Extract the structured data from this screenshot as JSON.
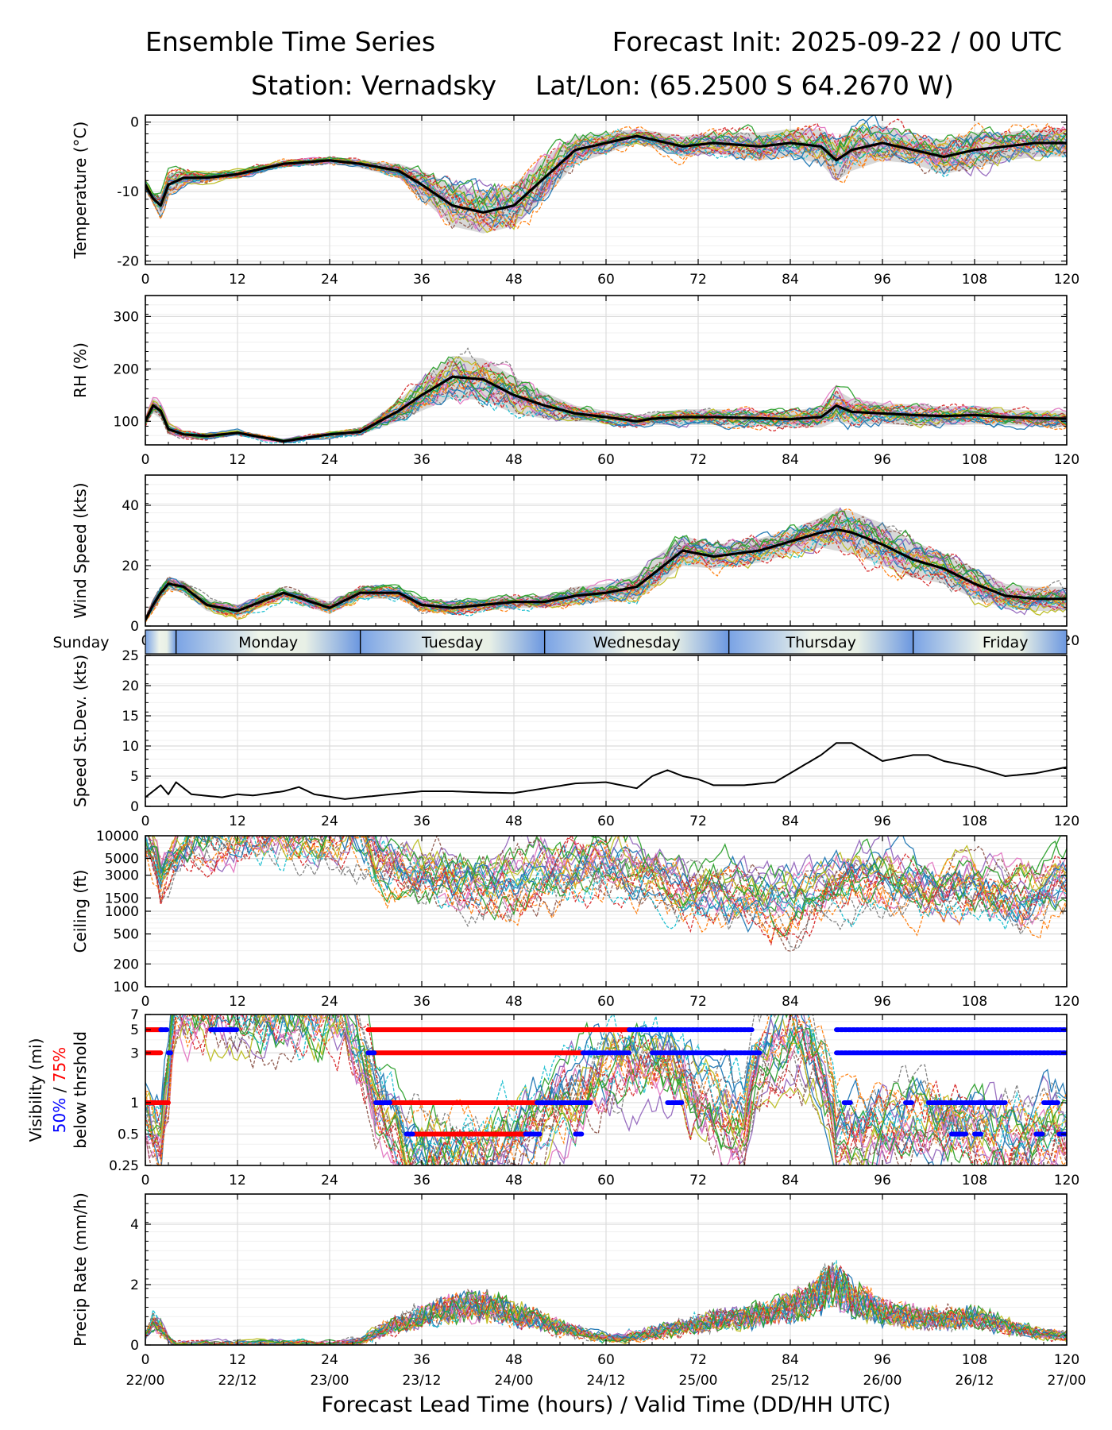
{
  "title": {
    "left": "Ensemble Time Series",
    "right": "Forecast Init: 2025-09-22 / 00 UTC",
    "station": "Station: Vernadsky",
    "latlon": "Lat/Lon: (65.2500 S 64.2670 W)"
  },
  "xlabel": "Forecast Lead Time (hours) / Valid Time (DD/HH UTC)",
  "x_ticks": [
    0,
    12,
    24,
    36,
    48,
    60,
    72,
    84,
    96,
    108,
    120
  ],
  "valid_time_ticks": [
    "22/00",
    "22/12",
    "23/00",
    "23/12",
    "24/00",
    "24/12",
    "25/00",
    "25/12",
    "26/00",
    "26/12",
    "27/00"
  ],
  "day_bar": {
    "days": [
      {
        "label": "Sunday",
        "start": -4,
        "end": 4
      },
      {
        "label": "Monday",
        "start": 4,
        "end": 28
      },
      {
        "label": "Tuesday",
        "start": 28,
        "end": 52
      },
      {
        "label": "Wednesday",
        "start": 52,
        "end": 76
      },
      {
        "label": "Thursday",
        "start": 76,
        "end": 100
      },
      {
        "label": "Friday",
        "start": 100,
        "end": 124
      }
    ]
  },
  "ensemble_colors": [
    "#1f77b4",
    "#ff7f0e",
    "#2ca02c",
    "#d62728",
    "#9467bd",
    "#8c564b",
    "#e377c2",
    "#7f7f7f",
    "#bcbd22",
    "#17becf"
  ],
  "chart_data": [
    {
      "id": "temperature",
      "type": "line",
      "ylabel": "Temperature (°C)",
      "ylim": [
        -20.5,
        1
      ],
      "yticks": [
        0,
        -10,
        -20
      ],
      "xlim": [
        0,
        120
      ],
      "series": [
        {
          "name": "ensemble mean",
          "x": [
            0,
            1,
            2,
            3,
            5,
            8,
            12,
            18,
            24,
            28,
            33,
            36,
            40,
            44,
            48,
            52,
            56,
            60,
            64,
            66,
            70,
            74,
            80,
            84,
            88,
            90,
            92,
            96,
            100,
            104,
            108,
            112,
            116,
            120
          ],
          "values": [
            -9,
            -11,
            -12,
            -9,
            -8,
            -8,
            -7.5,
            -6,
            -5.5,
            -6,
            -7,
            -9,
            -12,
            -13,
            -12,
            -8,
            -4,
            -3,
            -2,
            -2.5,
            -3.5,
            -3,
            -3.5,
            -3,
            -3.5,
            -5.5,
            -4,
            -3,
            -4,
            -5,
            -4,
            -3.5,
            -3,
            -3
          ]
        }
      ],
      "spread": [
        0.8,
        0.8,
        1.5,
        1.5,
        1,
        0.6,
        0.5,
        0.5,
        0.5,
        0.6,
        1,
        2,
        3,
        3,
        3,
        3,
        2,
        1.5,
        1,
        1.2,
        1.5,
        1.5,
        2,
        2,
        2.5,
        3,
        3,
        2.5,
        2,
        2.5,
        2.5,
        2,
        2,
        2
      ]
    },
    {
      "id": "rh",
      "type": "line",
      "ylabel": "RH (%)",
      "ylim": [
        55,
        340
      ],
      "yticks": [
        100,
        200,
        300
      ],
      "xlim": [
        0,
        120
      ],
      "series": [
        {
          "name": "ensemble mean",
          "x": [
            0,
            1,
            2,
            3,
            5,
            8,
            12,
            18,
            24,
            28,
            33,
            36,
            40,
            44,
            48,
            52,
            56,
            60,
            64,
            66,
            70,
            74,
            80,
            84,
            88,
            90,
            92,
            96,
            100,
            104,
            108,
            112,
            116,
            120
          ],
          "values": [
            100,
            130,
            120,
            85,
            75,
            72,
            78,
            62,
            75,
            80,
            120,
            150,
            185,
            180,
            150,
            130,
            115,
            108,
            100,
            105,
            108,
            108,
            106,
            104,
            108,
            130,
            118,
            115,
            112,
            110,
            112,
            108,
            106,
            105
          ]
        }
      ],
      "spread": [
        10,
        15,
        15,
        10,
        6,
        5,
        5,
        4,
        5,
        6,
        20,
        30,
        40,
        40,
        35,
        25,
        15,
        12,
        10,
        12,
        15,
        15,
        15,
        15,
        20,
        30,
        25,
        20,
        20,
        18,
        18,
        15,
        15,
        15
      ]
    },
    {
      "id": "wind",
      "type": "line",
      "ylabel": "Wind Speed (kts)",
      "ylim": [
        0,
        50
      ],
      "yticks": [
        0,
        20,
        40
      ],
      "xlim": [
        0,
        120
      ],
      "series": [
        {
          "name": "ensemble mean",
          "x": [
            0,
            1,
            2,
            3,
            5,
            8,
            12,
            18,
            24,
            28,
            33,
            36,
            40,
            44,
            48,
            52,
            56,
            60,
            64,
            66,
            70,
            74,
            80,
            84,
            88,
            90,
            92,
            96,
            100,
            104,
            108,
            112,
            116,
            120
          ],
          "values": [
            2,
            7,
            11,
            14,
            13,
            7,
            5,
            11,
            6,
            11,
            11,
            7,
            6,
            7,
            8,
            8,
            10,
            11,
            13,
            17,
            25,
            23,
            25,
            28,
            31,
            32,
            31,
            27,
            22,
            19,
            14,
            10,
            9,
            9
          ]
        }
      ],
      "spread": [
        1,
        2,
        2,
        2,
        2,
        2,
        2,
        2,
        2,
        2,
        2,
        2,
        2,
        2,
        2,
        2,
        3,
        3,
        4,
        5,
        5,
        4,
        4,
        4,
        5,
        7,
        7,
        7,
        6,
        5,
        5,
        4,
        4,
        4
      ]
    },
    {
      "id": "wind_sd",
      "type": "line",
      "ylabel": "Speed St.Dev. (kts)",
      "ylim": [
        0,
        25
      ],
      "yticks": [
        0,
        5,
        10,
        15,
        20,
        25
      ],
      "xlim": [
        0,
        120
      ],
      "series": [
        {
          "name": "speed standard deviation",
          "x": [
            0,
            1,
            2,
            3,
            4,
            6,
            10,
            12,
            14,
            18,
            20,
            22,
            26,
            28,
            32,
            36,
            40,
            44,
            48,
            52,
            56,
            60,
            64,
            66,
            68,
            70,
            72,
            74,
            78,
            82,
            84,
            88,
            90,
            92,
            96,
            100,
            102,
            104,
            108,
            112,
            116,
            120
          ],
          "values": [
            1.5,
            2.5,
            3.5,
            2,
            4,
            2,
            1.5,
            2,
            1.8,
            2.5,
            3.2,
            2,
            1.2,
            1.5,
            2,
            2.5,
            2.5,
            2.3,
            2.2,
            3,
            3.8,
            4,
            3,
            5,
            6,
            5,
            4.5,
            3.5,
            3.5,
            4,
            5.5,
            8.5,
            10.5,
            10.5,
            7.5,
            8.5,
            8.5,
            7.5,
            6.5,
            5,
            5.5,
            6.5
          ]
        }
      ]
    },
    {
      "id": "ceiling",
      "type": "line",
      "ylabel": "Ceiling (ft)",
      "yscale": "log",
      "ylim": [
        100,
        10000
      ],
      "yticks": [
        10000,
        5000,
        3000,
        1500,
        1000,
        500,
        200,
        100
      ],
      "xlim": [
        0,
        120
      ],
      "series": [
        {
          "name": "ensemble members",
          "x": [
            0,
            2,
            4,
            6,
            24,
            28,
            30,
            36,
            42,
            48,
            54,
            60,
            66,
            72,
            78,
            84,
            90,
            96,
            102,
            108,
            114,
            120
          ],
          "values": [
            10000,
            3000,
            6000,
            10000,
            10000,
            10000,
            5000,
            3000,
            2500,
            2500,
            3000,
            4000,
            3000,
            2000,
            1500,
            1200,
            2500,
            2500,
            2000,
            2000,
            1500,
            2500
          ]
        }
      ]
    },
    {
      "id": "visibility",
      "type": "line",
      "ylabel": "Visibility (mi)",
      "yscale": "log",
      "ylabel2": "50%",
      "ylabel_sep": " / ",
      "ylabel3": "75%",
      "ylabel4": "below thrshold",
      "ylim": [
        0.25,
        7
      ],
      "yticks": [
        7,
        5,
        3,
        1,
        0.5,
        0.25
      ],
      "xlim": [
        0,
        120
      ],
      "series": [
        {
          "name": "ensemble members",
          "x": [
            0,
            1,
            2,
            3,
            4,
            8,
            12,
            26,
            28,
            30,
            32,
            34,
            36,
            40,
            44,
            48,
            52,
            56,
            60,
            66,
            72,
            78,
            84,
            90,
            96,
            102,
            108,
            114,
            120
          ],
          "values": [
            0.8,
            0.5,
            0.4,
            1.5,
            7,
            7,
            7,
            7,
            3,
            1,
            0.6,
            0.3,
            0.3,
            0.3,
            0.3,
            0.4,
            0.6,
            1,
            2,
            3,
            1,
            0.6,
            5,
            0.5,
            0.6,
            0.8,
            0.6,
            0.5,
            0.5
          ]
        }
      ],
      "threshold_segments": {
        "p75": [
          [
            0,
            2,
            5
          ],
          [
            29,
            63,
            5
          ],
          [
            0,
            2,
            3
          ],
          [
            29,
            57,
            3
          ],
          [
            0,
            3,
            1
          ],
          [
            30,
            51,
            1
          ],
          [
            35,
            50,
            0.5
          ]
        ],
        "p50": [
          [
            2,
            3,
            5
          ],
          [
            8.5,
            12,
            5
          ],
          [
            63,
            66,
            5
          ],
          [
            66,
            79,
            5
          ],
          [
            90,
            120,
            5
          ],
          [
            3,
            3.4,
            3
          ],
          [
            29,
            30,
            3
          ],
          [
            57,
            63,
            3
          ],
          [
            66,
            80,
            3
          ],
          [
            90,
            120,
            3
          ],
          [
            30,
            32,
            1
          ],
          [
            51,
            58,
            1
          ],
          [
            68,
            70,
            1
          ],
          [
            91,
            92,
            1
          ],
          [
            99,
            100,
            1
          ],
          [
            102,
            112,
            1
          ],
          [
            117,
            119,
            1
          ],
          [
            34,
            35,
            0.5
          ],
          [
            49.5,
            51.5,
            0.5
          ],
          [
            56,
            57,
            0.5
          ],
          [
            105,
            107,
            0.5
          ],
          [
            108,
            109,
            0.5
          ],
          [
            116,
            117,
            0.5
          ],
          [
            119,
            120,
            0.5
          ]
        ]
      }
    },
    {
      "id": "precip",
      "type": "line",
      "ylabel": "Precip Rate (mm/h)",
      "ylim": [
        0,
        5
      ],
      "yticks": [
        0,
        2,
        4
      ],
      "xlim": [
        0,
        120
      ],
      "series": [
        {
          "name": "ensemble members",
          "x": [
            0,
            1,
            2,
            3,
            4,
            8,
            12,
            24,
            28,
            30,
            34,
            38,
            42,
            46,
            50,
            54,
            58,
            62,
            66,
            70,
            74,
            78,
            82,
            86,
            88,
            90,
            92,
            96,
            100,
            104,
            108,
            112,
            116,
            120
          ],
          "values": [
            0.3,
            0.8,
            0.6,
            0.2,
            0,
            0,
            0.05,
            0,
            0.1,
            0.4,
            0.8,
            1.1,
            1.3,
            1.2,
            0.9,
            0.6,
            0.3,
            0.2,
            0.4,
            0.6,
            0.8,
            0.9,
            1.1,
            1.4,
            1.8,
            2,
            1.6,
            1.1,
            0.9,
            0.9,
            0.9,
            0.6,
            0.4,
            0.3
          ]
        }
      ]
    }
  ]
}
